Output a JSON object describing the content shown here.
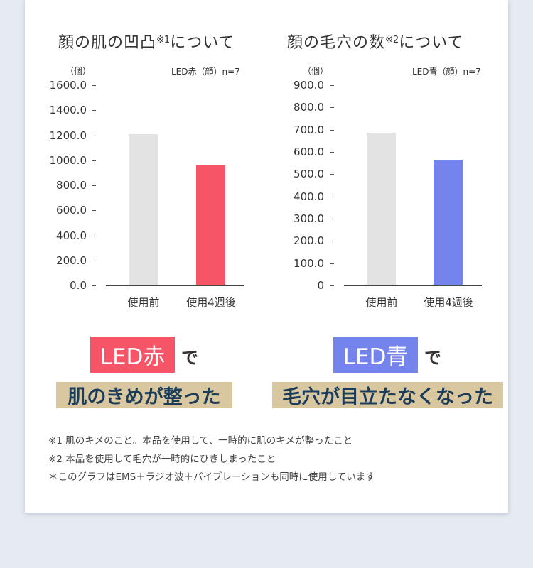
{
  "chart_data": [
    {
      "type": "bar",
      "title": "顔の肌の凹凸※1について",
      "title_main": "顔の肌の凹凸",
      "title_sup": "※1",
      "title_tail": "について",
      "ylabel": "（個）",
      "series_label": "LED赤（顔）n=7",
      "categories": [
        "使用前",
        "使用4週後"
      ],
      "values": [
        1210,
        965
      ],
      "colors": [
        "#e3e3e3",
        "#f55566"
      ],
      "ylim": [
        0,
        1600
      ],
      "yticks": [
        "1600.0",
        "1400.0",
        "1200.0",
        "1000.0",
        "800.0",
        "600.0",
        "400.0",
        "200.0",
        "0.0"
      ],
      "grid": false
    },
    {
      "type": "bar",
      "title": "顔の毛穴の数※2について",
      "title_main": "顔の毛穴の数",
      "title_sup": "※2",
      "title_tail": "について",
      "ylabel": "（個）",
      "series_label": "LED青（顔）n=7",
      "categories": [
        "使用前",
        "使用4週後"
      ],
      "values": [
        685,
        565
      ],
      "colors": [
        "#e3e3e3",
        "#7584ec"
      ],
      "ylim": [
        0,
        900
      ],
      "yticks": [
        "900.0",
        "800.0",
        "700.0",
        "600.0",
        "500.0",
        "400.0",
        "300.0",
        "200.0",
        "100.0",
        "0"
      ],
      "grid": false
    }
  ],
  "results": [
    {
      "led_label": "LED赤",
      "led_color": "#f55566",
      "suffix": "で",
      "result": "肌のきめが整った"
    },
    {
      "led_label": "LED青",
      "led_color": "#7584ec",
      "suffix": "で",
      "result": "毛穴が目立たなくなった"
    }
  ],
  "notes": [
    "※1  肌のキメのこと。本品を使用して、一時的に肌のキメが整ったこと",
    "※2  本品を使用して毛穴が一時的にひきしまったこと",
    "＊このグラフはEMS＋ラジオ波＋バイブレーションも同時に使用しています"
  ],
  "colors": {
    "background": "#e6eaf2",
    "card": "#ffffff",
    "result_box": "#d9c7a0",
    "result_text": "#1c3d5a"
  }
}
